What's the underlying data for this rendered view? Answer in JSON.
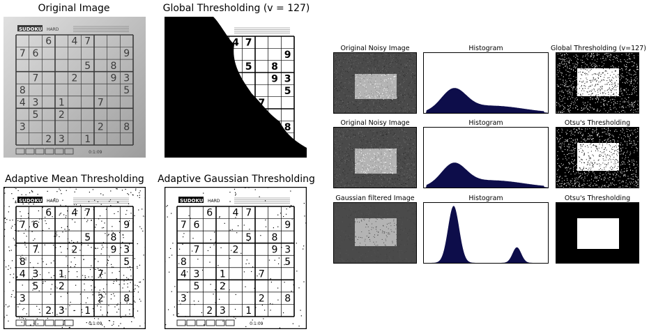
{
  "left_figure": {
    "titles": {
      "original": "Original Image",
      "global": "Global Thresholding (v = 127)",
      "adaptive_mean": "Adaptive Mean Thresholding",
      "adaptive_gaussian": "Adaptive Gaussian Thresholding"
    },
    "sudoku_header": "SUDOKU",
    "sudoku_level": "HARD",
    "sudoku_time": "0:1:09",
    "sudoku_digits": [
      {
        "r": 0,
        "c": 2,
        "v": "6"
      },
      {
        "r": 0,
        "c": 4,
        "v": "4"
      },
      {
        "r": 0,
        "c": 5,
        "v": "7"
      },
      {
        "r": 1,
        "c": 0,
        "v": "7"
      },
      {
        "r": 1,
        "c": 1,
        "v": "6"
      },
      {
        "r": 1,
        "c": 8,
        "v": "9"
      },
      {
        "r": 2,
        "c": 5,
        "v": "5"
      },
      {
        "r": 2,
        "c": 7,
        "v": "8"
      },
      {
        "r": 3,
        "c": 1,
        "v": "7"
      },
      {
        "r": 3,
        "c": 4,
        "v": "2"
      },
      {
        "r": 3,
        "c": 7,
        "v": "9"
      },
      {
        "r": 3,
        "c": 8,
        "v": "3"
      },
      {
        "r": 4,
        "c": 0,
        "v": "8"
      },
      {
        "r": 4,
        "c": 8,
        "v": "5"
      },
      {
        "r": 5,
        "c": 0,
        "v": "4"
      },
      {
        "r": 5,
        "c": 1,
        "v": "3"
      },
      {
        "r": 5,
        "c": 3,
        "v": "1"
      },
      {
        "r": 5,
        "c": 6,
        "v": "7"
      },
      {
        "r": 6,
        "c": 1,
        "v": "5"
      },
      {
        "r": 6,
        "c": 3,
        "v": "2"
      },
      {
        "r": 7,
        "c": 0,
        "v": "3"
      },
      {
        "r": 7,
        "c": 6,
        "v": "2"
      },
      {
        "r": 7,
        "c": 8,
        "v": "8"
      },
      {
        "r": 8,
        "c": 2,
        "v": "2"
      },
      {
        "r": 8,
        "c": 3,
        "v": "3"
      },
      {
        "r": 8,
        "c": 5,
        "v": "1"
      }
    ]
  },
  "right_figure": {
    "rows": [
      {
        "titles": [
          "Original Noisy Image",
          "Histogram",
          "Global Thresholding (v=127)"
        ]
      },
      {
        "titles": [
          "Original Noisy Image",
          "Histogram",
          "Otsu's Thresholding"
        ]
      },
      {
        "titles": [
          "Gaussian filtered Image",
          "Histogram",
          "Otsu's Thresholding"
        ]
      }
    ]
  },
  "colors": {
    "hist_fill": "#0d0d4a",
    "noise_bg": "#4a4a4a",
    "rect_light": "#b4b4b4"
  }
}
